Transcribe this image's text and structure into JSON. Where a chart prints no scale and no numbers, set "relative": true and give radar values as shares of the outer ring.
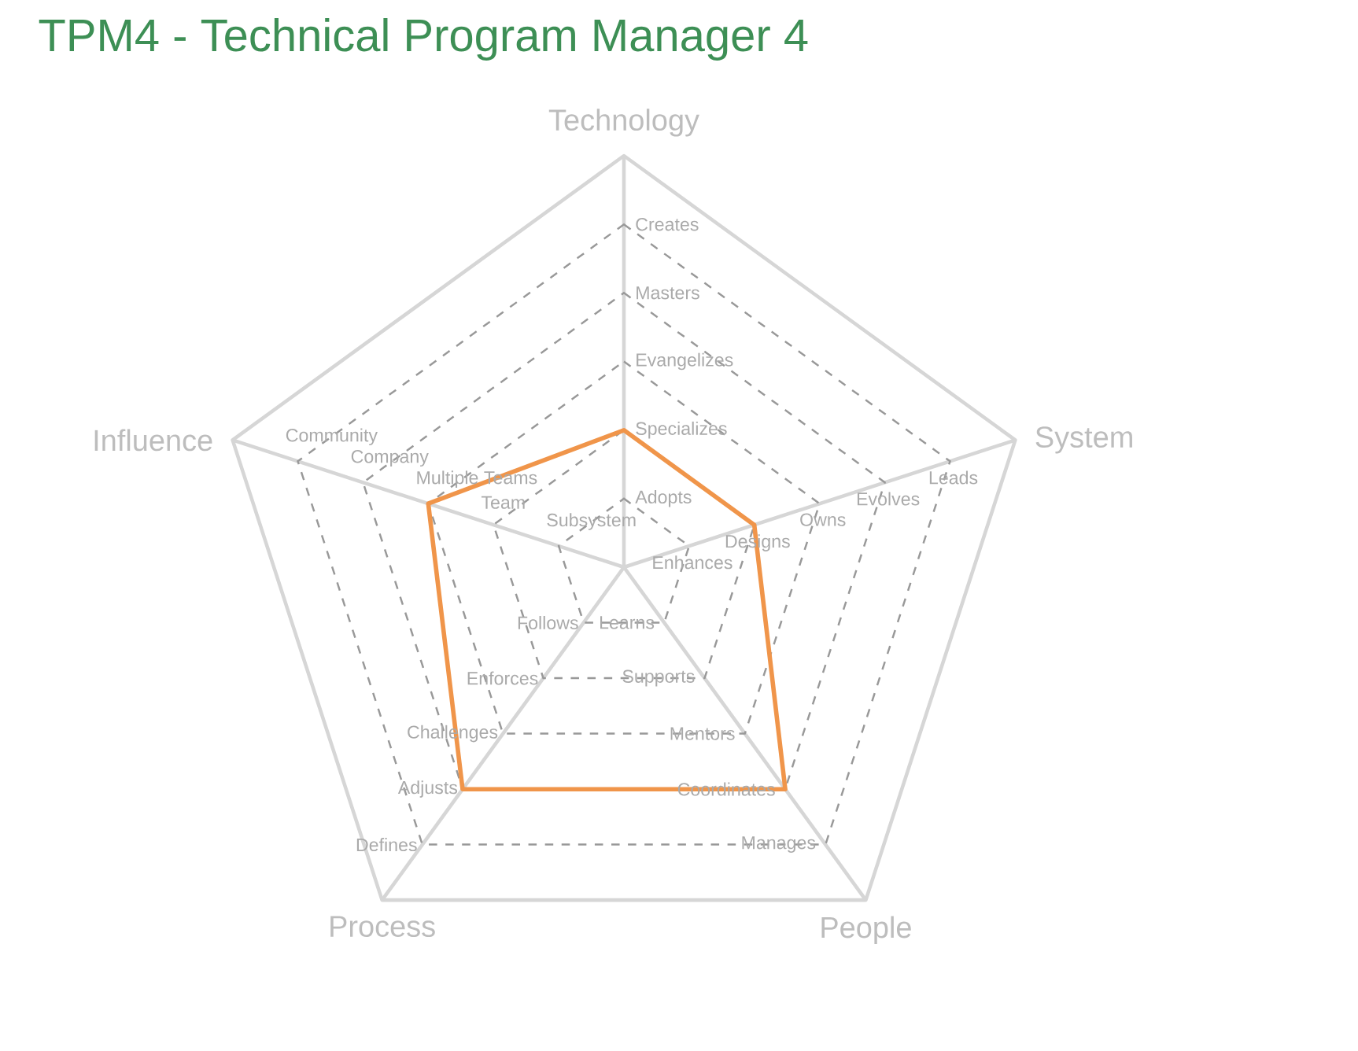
{
  "chart_data": {
    "type": "radar",
    "title": "TPM4 - Technical Program Manager 4",
    "categories": [
      "Technology",
      "System",
      "People",
      "Process",
      "Influence"
    ],
    "series": [
      {
        "color": "#f0954a",
        "values": [
          0.333,
          0.333,
          0.667,
          0.667,
          0.5
        ]
      }
    ],
    "relative": true,
    "grid": true,
    "marker": "none",
    "line_style": "solid",
    "annotations": [
      {
        "text": "Adopts",
        "x": "Technology"
      },
      {
        "text": "Specializes",
        "x": "Technology"
      },
      {
        "text": "Evangelizes",
        "x": "Technology"
      },
      {
        "text": "Masters",
        "x": "Technology"
      },
      {
        "text": "Creates",
        "x": "Technology"
      },
      {
        "text": "Enhances",
        "x": "System"
      },
      {
        "text": "Designs",
        "x": "System"
      },
      {
        "text": "Owns",
        "x": "System"
      },
      {
        "text": "Evolves",
        "x": "System"
      },
      {
        "text": "Leads",
        "x": "System"
      },
      {
        "text": "Learns",
        "x": "People"
      },
      {
        "text": "Supports",
        "x": "People"
      },
      {
        "text": "Mentors",
        "x": "People"
      },
      {
        "text": "Coordinates",
        "x": "People"
      },
      {
        "text": "Manages",
        "x": "People"
      },
      {
        "text": "Follows",
        "x": "Process"
      },
      {
        "text": "Enforces",
        "x": "Process"
      },
      {
        "text": "Challenges",
        "x": "Process"
      },
      {
        "text": "Adjusts",
        "x": "Process"
      },
      {
        "text": "Defines",
        "x": "Process"
      },
      {
        "text": "Subsystem",
        "x": "Influence"
      },
      {
        "text": "Team",
        "x": "Influence"
      },
      {
        "text": "Multiple Teams",
        "x": "Influence"
      },
      {
        "text": "Company",
        "x": "Influence"
      },
      {
        "text": "Community",
        "x": "Influence"
      }
    ]
  }
}
